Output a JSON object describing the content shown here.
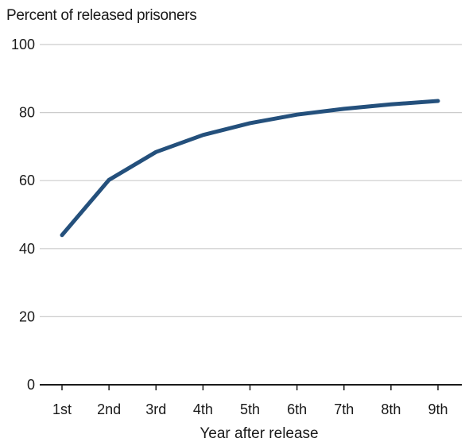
{
  "chart_data": {
    "type": "line",
    "title": "",
    "ylabel": "Percent of released prisoners",
    "xlabel": "Year after release",
    "categories": [
      "1st",
      "2nd",
      "3rd",
      "4th",
      "5th",
      "6th",
      "7th",
      "8th",
      "9th"
    ],
    "series": [
      {
        "values": [
          44,
          60.2,
          68.4,
          73.4,
          76.9,
          79.4,
          81.1,
          82.4,
          83.4
        ],
        "color": "#24507c"
      }
    ],
    "ylim": [
      0,
      100
    ],
    "yticks": [
      "0",
      "20",
      "40",
      "60",
      "80",
      "100"
    ],
    "grid": true,
    "gridColor": "#cccccc",
    "axisColor": "#1a1a1a"
  }
}
